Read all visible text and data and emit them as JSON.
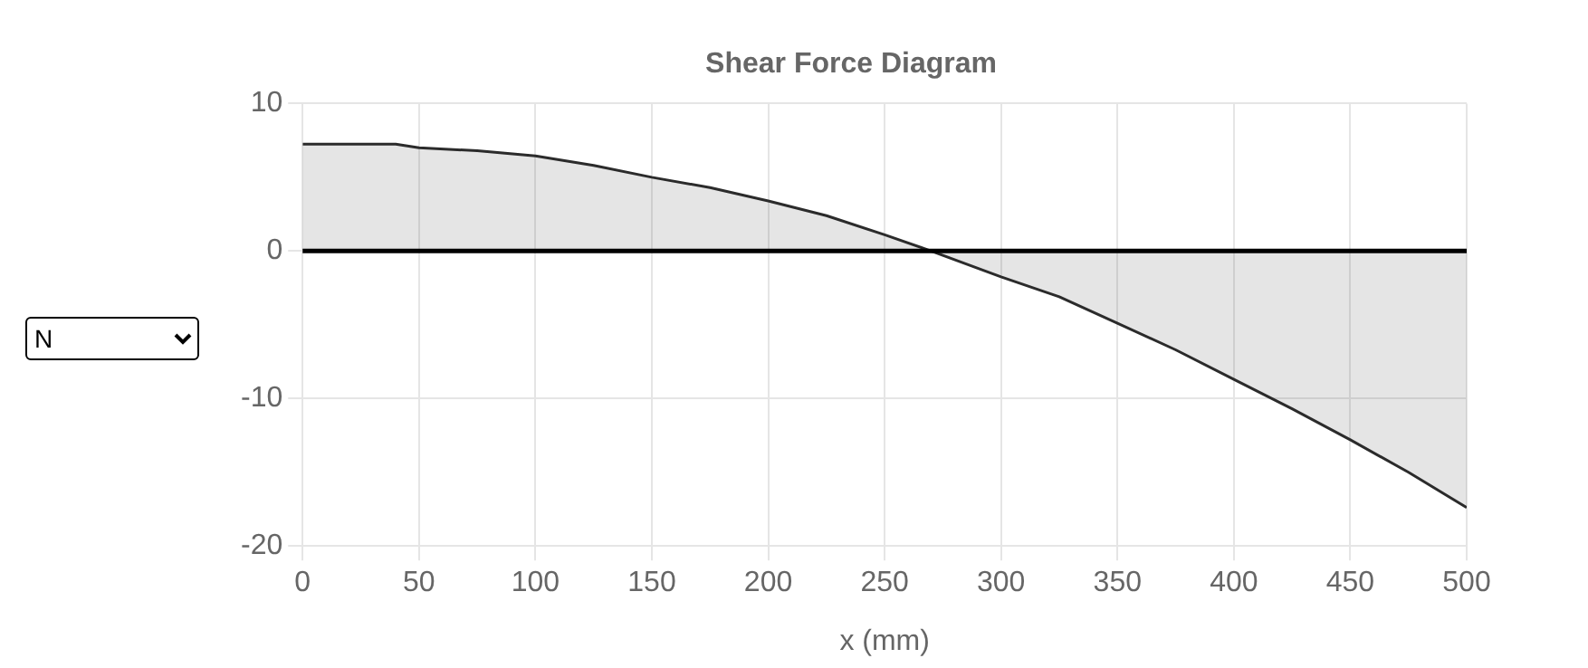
{
  "chart_data": {
    "type": "area",
    "title": "Shear Force Diagram",
    "xlabel": "x (mm)",
    "annotations": [
      "N"
    ],
    "series": [
      {
        "color": "#2b2b2b",
        "x": [
          0,
          25,
          40,
          50,
          75,
          100,
          125,
          150,
          175,
          200,
          225,
          250,
          270,
          275,
          300,
          325,
          350,
          375,
          400,
          425,
          450,
          475,
          500
        ],
        "values": [
          7.25,
          7.25,
          7.25,
          7.0,
          6.8,
          6.45,
          5.8,
          5.0,
          4.3,
          3.4,
          2.4,
          1.1,
          0,
          -0.3,
          -1.75,
          -3.1,
          -4.9,
          -6.7,
          -8.7,
          -10.7,
          -12.8,
          -15.0,
          -17.4
        ]
      }
    ],
    "xlim": [
      0,
      500
    ],
    "xticks": [
      0,
      50,
      100,
      150,
      200,
      250,
      300,
      350,
      400,
      450,
      500
    ],
    "ylim": [
      -20,
      10
    ],
    "yticks": [
      -20,
      -10,
      0,
      10
    ],
    "ref_lines": [
      {
        "axis": "y",
        "value": 0,
        "color": "#000000"
      }
    ],
    "grid": true,
    "legend": false,
    "marker": "none",
    "line_style": "solid"
  }
}
